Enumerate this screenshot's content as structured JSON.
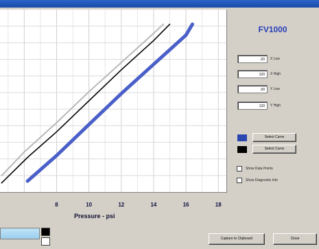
{
  "window": {
    "product": "FV1000"
  },
  "axes": [
    {
      "value": "-20",
      "label": "X Low"
    },
    {
      "value": "120",
      "label": "X High"
    },
    {
      "value": "-20",
      "label": "Y Low"
    },
    {
      "value": "120",
      "label": "Y High"
    }
  ],
  "curve_buttons": [
    {
      "label": "Select Curve",
      "color": "#2a46b0"
    },
    {
      "label": "Select Curve",
      "color": "#000000"
    }
  ],
  "checkboxes": [
    {
      "label": "Show Data Points",
      "checked": false
    },
    {
      "label": "Show Diagnostic Info",
      "checked": false
    }
  ],
  "footer": {
    "capture_label": "Capture to Clipboard",
    "close_label": "Close"
  },
  "chart_data": {
    "type": "line",
    "xlabel": "Pressure - psi",
    "x_ticks": [
      "8",
      "10",
      "12",
      "14",
      "16",
      "18"
    ],
    "xlim": [
      4.5,
      18.5
    ],
    "grid": true,
    "series": [
      {
        "color": "#b8b8b8",
        "x": [
          4.6,
          6.0,
          8.0,
          10.0,
          12.0,
          14.0,
          14.6
        ],
        "y": [
          0.09,
          0.22,
          0.38,
          0.55,
          0.71,
          0.87,
          0.92
        ]
      },
      {
        "color": "#000000",
        "x": [
          4.6,
          6.2,
          8.0,
          10.0,
          12.0,
          14.0,
          15.0
        ],
        "y": [
          0.05,
          0.19,
          0.33,
          0.5,
          0.67,
          0.83,
          0.92
        ]
      },
      {
        "color": "#4a5fc8",
        "x": [
          6.2,
          8.0,
          10.0,
          12.0,
          14.0,
          16.0,
          16.4
        ],
        "y": [
          0.06,
          0.2,
          0.37,
          0.54,
          0.7,
          0.86,
          0.92
        ]
      }
    ]
  }
}
